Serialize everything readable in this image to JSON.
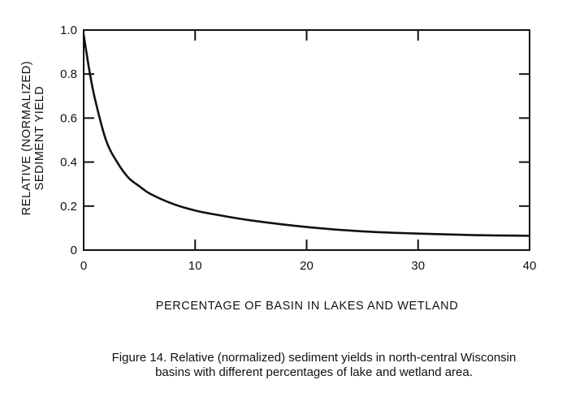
{
  "chart_data": {
    "type": "line",
    "title": "",
    "xlabel": "PERCENTAGE OF BASIN IN LAKES AND WETLAND",
    "ylabel_lines": [
      "RELATIVE (NORMALIZED)",
      "SEDIMENT YIELD"
    ],
    "xlim": [
      0,
      40
    ],
    "ylim": [
      0,
      1.0
    ],
    "x_ticks": [
      0,
      10,
      20,
      30,
      40
    ],
    "x_tick_labels": [
      "0",
      "10",
      "20",
      "30",
      "40"
    ],
    "y_ticks": [
      0,
      0.2,
      0.4,
      0.6,
      0.8,
      1.0
    ],
    "y_tick_labels": [
      "0",
      "0.2",
      "0.4",
      "0.6",
      "0.8",
      "1.0"
    ],
    "grid": false,
    "series": [
      {
        "name": "sediment yield",
        "x": [
          0,
          0.5,
          1,
          2,
          3,
          4,
          5,
          6,
          8,
          10,
          12,
          15,
          20,
          25,
          30,
          35,
          40
        ],
        "y": [
          0.98,
          0.82,
          0.69,
          0.5,
          0.4,
          0.33,
          0.29,
          0.255,
          0.21,
          0.18,
          0.16,
          0.135,
          0.105,
          0.085,
          0.075,
          0.068,
          0.065
        ]
      }
    ]
  },
  "caption": {
    "line1": "Figure 14.  Relative (normalized) sediment yields in north-central Wisconsin",
    "line2": "basins with different percentages of lake and wetland area."
  }
}
